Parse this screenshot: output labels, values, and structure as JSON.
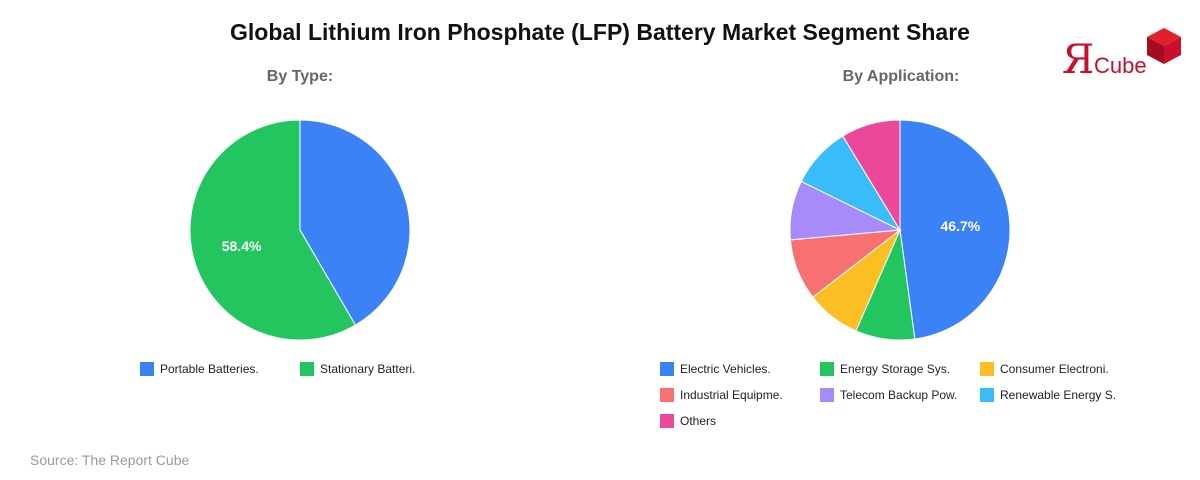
{
  "title": "Global Lithium Iron Phosphate (LFP) Battery Market Segment Share",
  "source": "Source: The Report Cube",
  "logo": {
    "text_r": "Я",
    "text_cube": "Cube",
    "color": "#c8102e"
  },
  "chart_data": [
    {
      "type": "pie",
      "title": "By Type:",
      "labels": [
        "Portable Batteries.",
        "Stationary Batteri."
      ],
      "values": [
        41.6,
        58.4
      ],
      "colors": [
        "#3b82f6",
        "#22c55e"
      ],
      "data_labels": [
        "",
        "58.4%"
      ],
      "legend": "bottom"
    },
    {
      "type": "pie",
      "title": "By Application:",
      "labels": [
        "Electric Vehicles.",
        "Energy Storage Sys.",
        "Consumer Electroni.",
        "Industrial Equipme.",
        "Telecom Backup Pow.",
        "Renewable Energy S.",
        "Others"
      ],
      "values": [
        46.7,
        8.5,
        7.8,
        8.8,
        8.5,
        8.8,
        8.5
      ],
      "colors": [
        "#3b82f6",
        "#22c55e",
        "#fbbf24",
        "#f87171",
        "#a78bfa",
        "#38bdf8",
        "#ec4899"
      ],
      "data_labels": [
        "46.7%",
        "",
        "",
        "",
        "",
        "",
        ""
      ],
      "legend": "bottom"
    }
  ]
}
